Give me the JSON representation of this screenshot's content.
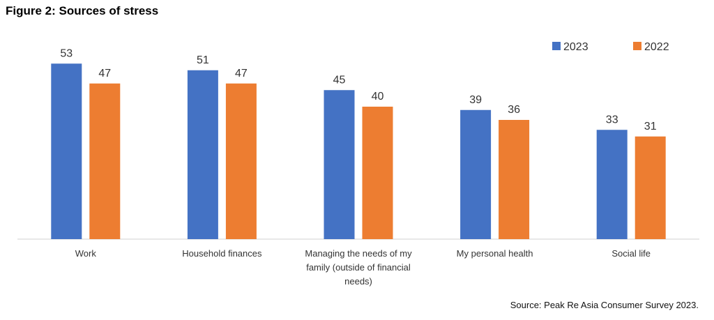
{
  "figure_title": "Figure 2: Sources of stress",
  "source": "Source: Peak Re Asia Consumer Survey 2023.",
  "colors": {
    "2023": "#4472c4",
    "2022": "#ed7d31",
    "axis": "#d0d0d0"
  },
  "chart_data": {
    "type": "bar",
    "title": "Figure 2: Sources of stress",
    "xlabel": "",
    "ylabel": "",
    "ylim": [
      0,
      60
    ],
    "grid": false,
    "legend": "top-right",
    "categories": [
      "Work",
      "Household finances",
      "Managing the needs of my family (outside of financial needs)",
      "My personal health",
      "Social life"
    ],
    "category_lines": [
      [
        "Work"
      ],
      [
        "Household finances"
      ],
      [
        "Managing the needs of my",
        "family (outside of financial",
        "needs)"
      ],
      [
        "My personal health"
      ],
      [
        "Social life"
      ]
    ],
    "series": [
      {
        "name": "2023",
        "values": [
          53,
          51,
          45,
          39,
          33
        ]
      },
      {
        "name": "2022",
        "values": [
          47,
          47,
          40,
          36,
          31
        ]
      }
    ]
  }
}
